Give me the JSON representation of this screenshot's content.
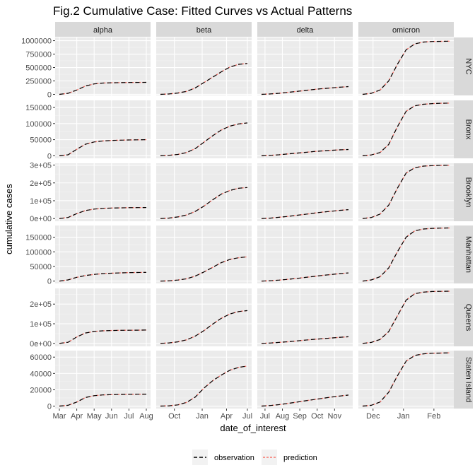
{
  "chart_data": {
    "type": "line",
    "title": "Fig.2 Cumulative Case: Fitted Curves vs Actual Patterns",
    "xlabel": "date_of_interest",
    "ylabel": "cumulative cases",
    "grid": true,
    "legend_position": "bottom",
    "legend": [
      {
        "name": "observation",
        "color": "#000000",
        "dash": "long"
      },
      {
        "name": "prediction",
        "color": "#f8766d",
        "dash": "short"
      }
    ],
    "columns": [
      {
        "name": "alpha",
        "xticks": [
          "Mar",
          "Apr",
          "May",
          "Jun",
          "Jul",
          "Aug"
        ],
        "xtick_pos": [
          0,
          0.2,
          0.4,
          0.6,
          0.8,
          1.0
        ]
      },
      {
        "name": "beta",
        "xticks": [
          "Oct",
          "Jan",
          "Apr",
          "Jul"
        ],
        "xtick_pos": [
          0.16,
          0.48,
          0.76,
          1.0
        ]
      },
      {
        "name": "delta",
        "xticks": [
          "Jul",
          "Aug",
          "Sep",
          "Oct",
          "Nov"
        ],
        "xtick_pos": [
          0.04,
          0.24,
          0.44,
          0.64,
          0.84
        ]
      },
      {
        "name": "omicron",
        "xticks": [
          "Dec",
          "Jan",
          "Feb"
        ],
        "xtick_pos": [
          0.12,
          0.47,
          0.82
        ]
      }
    ],
    "rows": [
      {
        "name": "NYC",
        "ylim": [
          -20000,
          1060000
        ],
        "yticks": [
          0,
          250000,
          500000,
          750000,
          1000000
        ],
        "ytick_labels": [
          "0",
          "250000",
          "500000",
          "750000",
          "1000000"
        ]
      },
      {
        "name": "Bronx",
        "ylim": [
          -8000,
          172000
        ],
        "yticks": [
          0,
          50000,
          100000,
          150000
        ],
        "ytick_labels": [
          "0",
          "50000",
          "100000",
          "150000"
        ]
      },
      {
        "name": "Brooklyn",
        "ylim": [
          -15000,
          310000
        ],
        "yticks": [
          0,
          100000,
          200000,
          300000
        ],
        "ytick_labels": [
          "0e+00",
          "1e+05",
          "2e+05",
          "3e+05"
        ]
      },
      {
        "name": "Manhattan",
        "ylim": [
          -8000,
          190000
        ],
        "yticks": [
          0,
          50000,
          100000,
          150000
        ],
        "ytick_labels": [
          "0",
          "50000",
          "100000",
          "150000"
        ]
      },
      {
        "name": "Queens",
        "ylim": [
          -15000,
          280000
        ],
        "yticks": [
          0,
          100000,
          200000
        ],
        "ytick_labels": [
          "0e+00",
          "1e+05",
          "2e+05"
        ]
      },
      {
        "name": "Staten Island",
        "ylim": [
          -3000,
          68000
        ],
        "yticks": [
          0,
          20000,
          40000,
          60000
        ],
        "ytick_labels": [
          "0",
          "20000",
          "40000",
          "60000"
        ]
      }
    ],
    "series": {
      "alpha": {
        "x": [
          0,
          0.1,
          0.2,
          0.3,
          0.4,
          0.5,
          0.6,
          0.7,
          0.8,
          0.9,
          1.0
        ],
        "NYC": [
          0,
          20000,
          80000,
          155000,
          195000,
          210000,
          216000,
          219000,
          221000,
          222000,
          223000
        ],
        "Bronx": [
          0,
          3000,
          20000,
          36000,
          43000,
          46000,
          47500,
          48500,
          49000,
          49500,
          50000
        ],
        "Brooklyn": [
          0,
          6000,
          28000,
          45000,
          53000,
          57000,
          59000,
          60000,
          61000,
          61500,
          62000
        ],
        "Manhattan": [
          0,
          4000,
          13000,
          19000,
          23000,
          25500,
          27000,
          28000,
          29000,
          29500,
          30000
        ],
        "Queens": [
          0,
          6000,
          33000,
          53000,
          61000,
          64000,
          65500,
          66500,
          67000,
          67500,
          68000
        ],
        "Staten Island": [
          0,
          1000,
          5000,
          10500,
          12800,
          13700,
          14100,
          14300,
          14500,
          14600,
          14700
        ]
      },
      "beta": {
        "x": [
          0,
          0.1,
          0.2,
          0.3,
          0.4,
          0.5,
          0.6,
          0.7,
          0.8,
          0.9,
          1.0
        ],
        "NYC": [
          0,
          8000,
          25000,
          55000,
          120000,
          220000,
          320000,
          420000,
          510000,
          560000,
          575000
        ],
        "Bronx": [
          0,
          1500,
          4000,
          10000,
          22000,
          42000,
          62000,
          80000,
          92000,
          99000,
          102000
        ],
        "Brooklyn": [
          0,
          3000,
          9000,
          20000,
          40000,
          70000,
          105000,
          137000,
          158000,
          170000,
          174000
        ],
        "Manhattan": [
          0,
          1000,
          3500,
          8000,
          17000,
          31000,
          47000,
          63000,
          74000,
          80000,
          83000
        ],
        "Queens": [
          0,
          2500,
          8000,
          18000,
          37000,
          65000,
          98000,
          128000,
          150000,
          162000,
          167000
        ],
        "Staten Island": [
          0,
          400,
          1500,
          4500,
          11000,
          22000,
          31000,
          38000,
          44000,
          47500,
          49000
        ]
      },
      "delta": {
        "x": [
          0,
          0.1,
          0.2,
          0.3,
          0.4,
          0.5,
          0.6,
          0.7,
          0.8,
          0.9,
          1.0
        ],
        "NYC": [
          0,
          8000,
          20000,
          36000,
          54000,
          72000,
          90000,
          106000,
          120000,
          133000,
          145000
        ],
        "Bronx": [
          0,
          1200,
          3000,
          5500,
          8000,
          10500,
          13000,
          15000,
          16800,
          18300,
          19500
        ],
        "Brooklyn": [
          0,
          2500,
          7000,
          12000,
          18000,
          24000,
          30000,
          36000,
          41000,
          46000,
          50000
        ],
        "Manhattan": [
          0,
          1200,
          3300,
          6000,
          9000,
          12500,
          16000,
          19500,
          22500,
          25500,
          28000
        ],
        "Queens": [
          0,
          2000,
          5000,
          8500,
          12500,
          16500,
          20500,
          24000,
          27500,
          31000,
          34000
        ],
        "Staten Island": [
          0,
          700,
          1800,
          3200,
          4800,
          6400,
          8000,
          9500,
          11000,
          12300,
          13500
        ]
      },
      "omicron": {
        "x": [
          0,
          0.1,
          0.2,
          0.3,
          0.4,
          0.5,
          0.6,
          0.7,
          0.8,
          0.9,
          1.0
        ],
        "NYC": [
          0,
          20000,
          80000,
          250000,
          560000,
          830000,
          940000,
          975000,
          985000,
          988000,
          990000
        ],
        "Bronx": [
          0,
          2500,
          10000,
          35000,
          90000,
          138000,
          155000,
          160000,
          162000,
          163000,
          163500
        ],
        "Brooklyn": [
          0,
          6000,
          25000,
          75000,
          170000,
          255000,
          285000,
          294000,
          297000,
          298500,
          299000
        ],
        "Manhattan": [
          0,
          4000,
          15000,
          45000,
          100000,
          150000,
          172000,
          178000,
          180000,
          181000,
          181500
        ],
        "Queens": [
          0,
          5000,
          20000,
          60000,
          140000,
          220000,
          253000,
          261000,
          264000,
          265000,
          265500
        ],
        "Staten Island": [
          0,
          1000,
          5000,
          17000,
          37000,
          55000,
          62000,
          64000,
          64800,
          65000,
          65200
        ]
      }
    }
  }
}
